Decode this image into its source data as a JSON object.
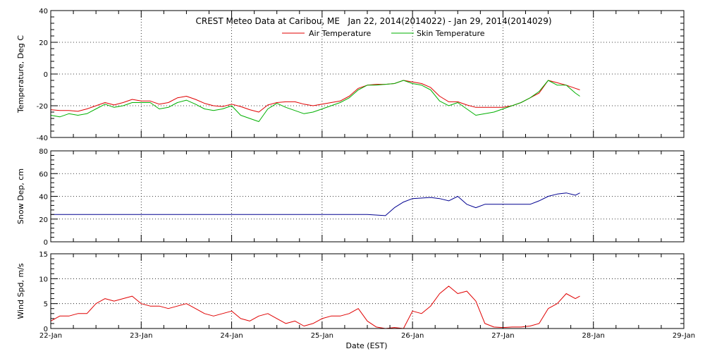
{
  "title": "CREST Meteo Data at Caribou, ME   Jan 22, 2014(2014022) - Jan 29, 2014(2014029)",
  "xlabel": "Date (EST)",
  "colors": {
    "air_temperature": "#e00000",
    "skin_temperature": "#00b000",
    "snow_depth": "#000090",
    "wind_speed": "#e00000",
    "axes": "#000000",
    "grid": "#000000"
  },
  "chart_data": [
    {
      "type": "line",
      "panel": "temperature",
      "ylabel": "Temperature, Deg C",
      "ylim": [
        -40,
        40
      ],
      "yticks": [
        "-40",
        "-20",
        "0",
        "20",
        "40"
      ],
      "xlim": [
        0,
        7
      ],
      "xticks": [
        "22-Jan",
        "23-Jan",
        "24-Jan",
        "25-Jan",
        "26-Jan",
        "27-Jan",
        "28-Jan",
        "29-Jan"
      ],
      "grid": true,
      "legend_position": "top-center",
      "series": [
        {
          "name": "Air Temperature",
          "color": "#e00000",
          "x": [
            0,
            0.1,
            0.2,
            0.3,
            0.4,
            0.5,
            0.6,
            0.7,
            0.8,
            0.9,
            1.0,
            1.1,
            1.2,
            1.3,
            1.4,
            1.5,
            1.6,
            1.7,
            1.8,
            1.9,
            2.0,
            2.1,
            2.2,
            2.3,
            2.4,
            2.5,
            2.6,
            2.7,
            2.8,
            2.9,
            3.0,
            3.1,
            3.2,
            3.3,
            3.4,
            3.5,
            3.6,
            3.7,
            3.8,
            3.9,
            4.0,
            4.1,
            4.2,
            4.3,
            4.4,
            4.5,
            4.6,
            4.7,
            4.8,
            4.9,
            5.0,
            5.1,
            5.2,
            5.3,
            5.4,
            5.5,
            5.6,
            5.7,
            5.8,
            5.85
          ],
          "y": [
            -22.5,
            -23,
            -23,
            -23.5,
            -22,
            -20,
            -18,
            -19.5,
            -18,
            -16,
            -17,
            -17,
            -19,
            -18,
            -15,
            -14,
            -16,
            -18.5,
            -20,
            -20.5,
            -19,
            -20.5,
            -22.5,
            -24,
            -19.5,
            -18,
            -17.5,
            -17.5,
            -19,
            -20,
            -19,
            -18,
            -17,
            -14,
            -9,
            -7,
            -6.5,
            -6.5,
            -6,
            -4,
            -5,
            -6,
            -8.5,
            -14,
            -17.5,
            -17.5,
            -19.5,
            -21,
            -21,
            -21,
            -21,
            -20,
            -18,
            -15,
            -12,
            -4,
            -5.5,
            -7,
            -9,
            -10
          ]
        },
        {
          "name": "Skin Temperature",
          "color": "#00b000",
          "x": [
            0,
            0.1,
            0.2,
            0.3,
            0.4,
            0.5,
            0.6,
            0.7,
            0.8,
            0.9,
            1.0,
            1.1,
            1.2,
            1.3,
            1.4,
            1.5,
            1.6,
            1.7,
            1.8,
            1.9,
            2.0,
            2.1,
            2.2,
            2.3,
            2.4,
            2.5,
            2.6,
            2.7,
            2.8,
            2.9,
            3.0,
            3.1,
            3.2,
            3.3,
            3.4,
            3.5,
            3.6,
            3.7,
            3.8,
            3.9,
            4.0,
            4.1,
            4.2,
            4.3,
            4.4,
            4.5,
            4.6,
            4.7,
            4.8,
            4.9,
            5.0,
            5.1,
            5.2,
            5.3,
            5.4,
            5.5,
            5.6,
            5.7,
            5.8,
            5.85
          ],
          "y": [
            -26,
            -27,
            -25,
            -26,
            -25,
            -22,
            -19,
            -21,
            -20,
            -18,
            -18,
            -18,
            -22,
            -21,
            -18,
            -16.5,
            -19,
            -22,
            -23,
            -22,
            -20,
            -26,
            -28,
            -30,
            -22,
            -18.5,
            -21,
            -23,
            -25,
            -24,
            -22,
            -20,
            -18,
            -15,
            -10,
            -7,
            -7,
            -6.5,
            -6,
            -4,
            -6,
            -7,
            -10,
            -17,
            -20,
            -18,
            -22,
            -26,
            -25,
            -24,
            -22,
            -20,
            -18,
            -15,
            -11,
            -4,
            -7,
            -7,
            -12,
            -14
          ]
        }
      ]
    },
    {
      "type": "line",
      "panel": "snow_depth",
      "ylabel": "Snow Dep, cm",
      "ylim": [
        0,
        80
      ],
      "yticks": [
        "0",
        "20",
        "40",
        "60",
        "80"
      ],
      "xlim": [
        0,
        7
      ],
      "grid": true,
      "series": [
        {
          "color": "#000090",
          "x": [
            0,
            0.5,
            1.0,
            1.5,
            2.0,
            2.5,
            3.0,
            3.5,
            3.7,
            3.8,
            3.9,
            4.0,
            4.2,
            4.3,
            4.4,
            4.5,
            4.6,
            4.7,
            4.8,
            4.9,
            5.0,
            5.1,
            5.2,
            5.3,
            5.4,
            5.5,
            5.6,
            5.7,
            5.8,
            5.85
          ],
          "y": [
            24,
            24,
            24,
            24,
            24,
            24,
            24,
            24,
            23,
            30,
            35,
            38,
            39,
            38,
            36,
            40,
            33,
            30,
            33,
            33,
            33,
            33,
            33,
            33,
            36,
            40,
            42,
            43,
            41,
            43
          ]
        }
      ]
    },
    {
      "type": "line",
      "panel": "wind_speed",
      "ylabel": "Wind Spd, m/s",
      "ylim": [
        0,
        15
      ],
      "yticks": [
        "0",
        "5",
        "10",
        "15"
      ],
      "xlim": [
        0,
        7
      ],
      "xticks": [
        "22-Jan",
        "23-Jan",
        "24-Jan",
        "25-Jan",
        "26-Jan",
        "27-Jan",
        "28-Jan",
        "29-Jan"
      ],
      "grid": true,
      "series": [
        {
          "color": "#e00000",
          "x": [
            0,
            0.1,
            0.2,
            0.3,
            0.4,
            0.5,
            0.6,
            0.7,
            0.8,
            0.9,
            1.0,
            1.1,
            1.2,
            1.3,
            1.4,
            1.5,
            1.6,
            1.7,
            1.8,
            1.9,
            2.0,
            2.1,
            2.2,
            2.3,
            2.4,
            2.5,
            2.6,
            2.7,
            2.8,
            2.9,
            3.0,
            3.1,
            3.2,
            3.3,
            3.4,
            3.5,
            3.6,
            3.7,
            3.8,
            3.9,
            4.0,
            4.1,
            4.2,
            4.3,
            4.4,
            4.5,
            4.6,
            4.7,
            4.8,
            4.9,
            5.0,
            5.1,
            5.2,
            5.3,
            5.4,
            5.5,
            5.6,
            5.7,
            5.8,
            5.85
          ],
          "y": [
            1.5,
            2.5,
            2.5,
            3.0,
            3.0,
            5.0,
            6.0,
            5.5,
            6.0,
            6.5,
            5.0,
            4.5,
            4.5,
            4.0,
            4.5,
            5.0,
            4.0,
            3.0,
            2.5,
            3.0,
            3.5,
            2.0,
            1.5,
            2.5,
            3.0,
            2.0,
            1.0,
            1.5,
            0.5,
            1.0,
            2.0,
            2.5,
            2.5,
            3.0,
            4.0,
            1.5,
            0.3,
            0.0,
            0.2,
            0.0,
            3.5,
            3.0,
            4.5,
            7.0,
            8.5,
            7.0,
            7.5,
            5.5,
            1.0,
            0.3,
            0.2,
            0.3,
            0.3,
            0.5,
            1.0,
            4.0,
            5.0,
            7.0,
            6.0,
            6.5
          ]
        }
      ]
    }
  ]
}
